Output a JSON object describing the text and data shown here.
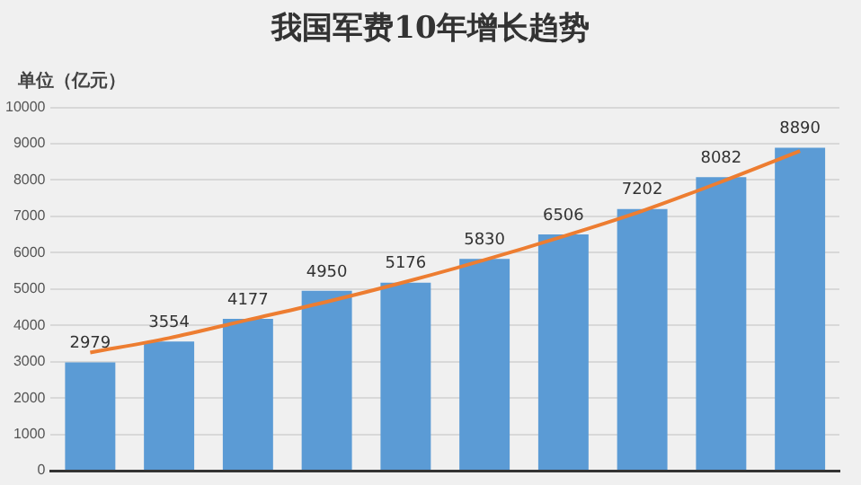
{
  "chart_data": {
    "type": "bar",
    "title": "我国军费10年增长趋势",
    "ylabel": "单位（亿元）",
    "categories": [
      null,
      null,
      null,
      null,
      null,
      null,
      null,
      null,
      null,
      null
    ],
    "series": [
      {
        "color": "#5b9bd5",
        "values": [
          2979,
          3554,
          4177,
          4950,
          5176,
          5830,
          6506,
          7202,
          8082,
          8890
        ],
        "value_labels": [
          "2979",
          "3554",
          "4177",
          "4950",
          "5176",
          "5830",
          "6506",
          "7202",
          "8082",
          "8890"
        ]
      },
      {
        "type": "line",
        "color": "#ed7d31",
        "values": [
          3250,
          3650,
          4150,
          4650,
          5200,
          5800,
          6450,
          7150,
          7950,
          8800
        ],
        "marker": "none"
      }
    ],
    "ylim": [
      0,
      10000
    ],
    "yticks": [
      0,
      1000,
      2000,
      3000,
      4000,
      5000,
      6000,
      7000,
      8000,
      9000,
      10000
    ],
    "grid": "y",
    "legend": false
  }
}
